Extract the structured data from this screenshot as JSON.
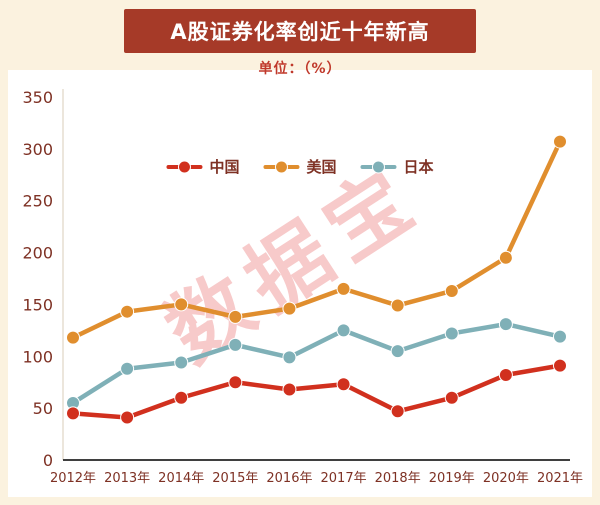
{
  "header": {
    "title": "A股证券化率创近十年新高",
    "unit_label": "单位：（%）"
  },
  "watermark": {
    "text": "数据宝"
  },
  "theme": {
    "page_bg": "#FBF2DF",
    "banner_bg": "#A63A28",
    "subtitle_color": "#C0392B",
    "axis_label_color": "#7E3124",
    "axis_line_color": "#3F3F3F",
    "watermark_color": "rgba(240,150,150,0.5)"
  },
  "chart_data": {
    "type": "line",
    "title": "A股证券化率创近十年新高",
    "unit": "单位：（%）",
    "categories": [
      "2012年",
      "2013年",
      "2014年",
      "2015年",
      "2016年",
      "2017年",
      "2018年",
      "2019年",
      "2020年",
      "2021年"
    ],
    "series": [
      {
        "name": "中国",
        "color": "#D1301E",
        "values": [
          45,
          41,
          60,
          75,
          68,
          73,
          47,
          60,
          82,
          91
        ]
      },
      {
        "name": "美国",
        "color": "#E08E2E",
        "values": [
          118,
          143,
          150,
          138,
          146,
          165,
          149,
          163,
          195,
          307
        ]
      },
      {
        "name": "日本",
        "color": "#7FB0B7",
        "values": [
          55,
          88,
          94,
          111,
          99,
          125,
          105,
          122,
          131,
          119
        ]
      }
    ],
    "ylim": [
      0,
      350
    ],
    "yticks": [
      0,
      50,
      100,
      150,
      200,
      250,
      300,
      350
    ],
    "grid": false,
    "legend_position": "top-center"
  }
}
